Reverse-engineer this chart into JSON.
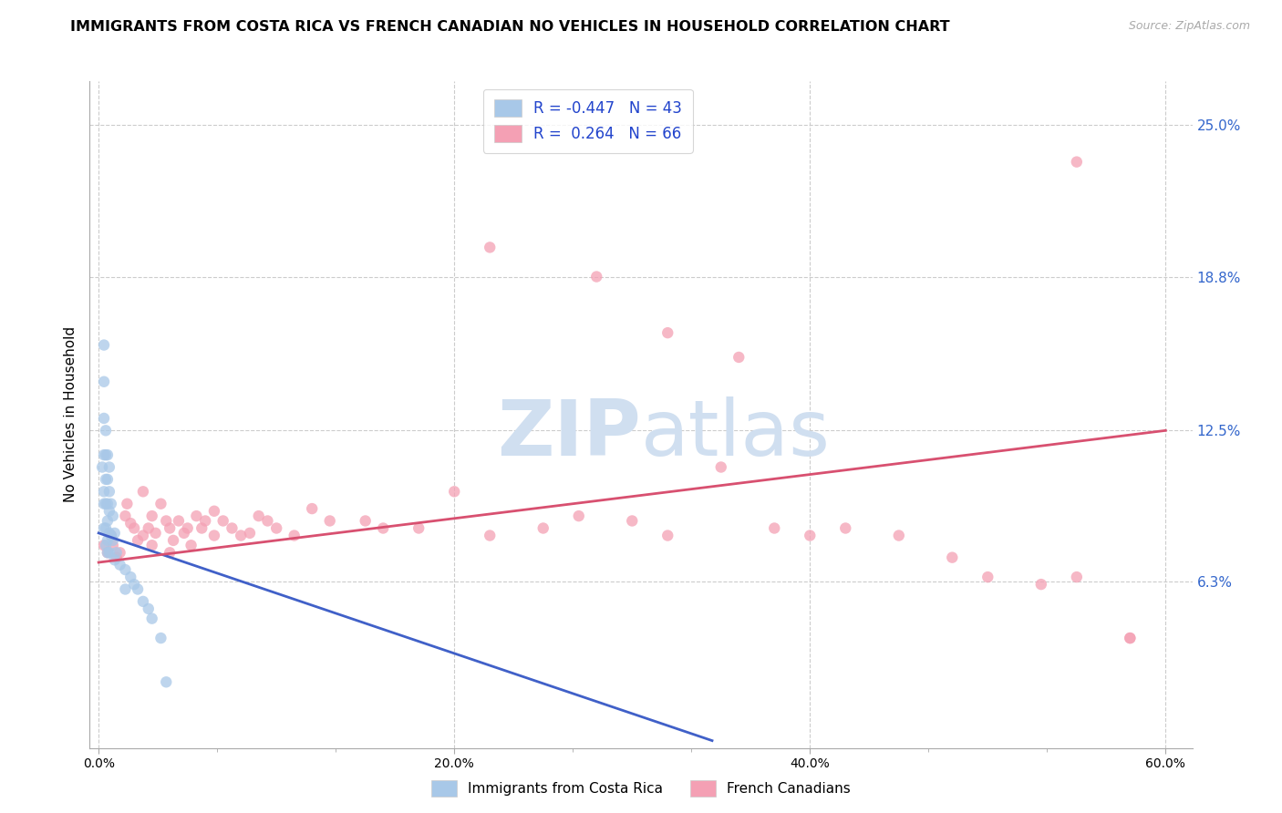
{
  "title": "IMMIGRANTS FROM COSTA RICA VS FRENCH CANADIAN NO VEHICLES IN HOUSEHOLD CORRELATION CHART",
  "source": "Source: ZipAtlas.com",
  "ylabel": "No Vehicles in Household",
  "xlabel_ticks": [
    "0.0%",
    "",
    "",
    "20.0%",
    "",
    "",
    "40.0%",
    "",
    "",
    "60.0%"
  ],
  "ylabel_ticks": [
    "6.3%",
    "12.5%",
    "18.8%",
    "25.0%"
  ],
  "ylabel_tick_vals": [
    0.063,
    0.125,
    0.188,
    0.25
  ],
  "xmin": -0.005,
  "xmax": 0.615,
  "ymin": -0.005,
  "ymax": 0.268,
  "blue_R": "-0.447",
  "blue_N": "43",
  "pink_R": "0.264",
  "pink_N": "66",
  "legend_label_blue": "Immigrants from Costa Rica",
  "legend_label_pink": "French Canadians",
  "blue_scatter_color": "#a8c8e8",
  "pink_scatter_color": "#f4a0b4",
  "blue_line_color": "#4060c8",
  "pink_line_color": "#d85070",
  "marker_size": 80,
  "marker_alpha": 0.75,
  "watermark_color": "#d0dff0",
  "blue_line_x0": 0.0,
  "blue_line_y0": 0.083,
  "blue_line_x1": 0.345,
  "blue_line_y1": -0.002,
  "pink_line_x0": 0.0,
  "pink_line_y0": 0.071,
  "pink_line_x1": 0.6,
  "pink_line_y1": 0.125,
  "background_color": "#ffffff",
  "grid_color": "#cccccc",
  "title_fontsize": 11.5,
  "axis_label_fontsize": 11,
  "tick_fontsize": 10,
  "blue_x": [
    0.002,
    0.003,
    0.003,
    0.003,
    0.003,
    0.003,
    0.003,
    0.003,
    0.004,
    0.004,
    0.004,
    0.004,
    0.004,
    0.004,
    0.005,
    0.005,
    0.005,
    0.005,
    0.005,
    0.005,
    0.006,
    0.006,
    0.006,
    0.006,
    0.006,
    0.007,
    0.007,
    0.008,
    0.008,
    0.009,
    0.009,
    0.01,
    0.012,
    0.015,
    0.015,
    0.018,
    0.02,
    0.022,
    0.025,
    0.028,
    0.03,
    0.035,
    0.038
  ],
  "blue_y": [
    0.11,
    0.16,
    0.145,
    0.13,
    0.115,
    0.1,
    0.095,
    0.085,
    0.125,
    0.115,
    0.105,
    0.095,
    0.085,
    0.078,
    0.115,
    0.105,
    0.095,
    0.088,
    0.08,
    0.075,
    0.11,
    0.1,
    0.092,
    0.083,
    0.075,
    0.095,
    0.082,
    0.09,
    0.08,
    0.083,
    0.072,
    0.075,
    0.07,
    0.068,
    0.06,
    0.065,
    0.062,
    0.06,
    0.055,
    0.052,
    0.048,
    0.04,
    0.022
  ],
  "pink_x": [
    0.003,
    0.005,
    0.007,
    0.008,
    0.01,
    0.012,
    0.015,
    0.016,
    0.018,
    0.02,
    0.022,
    0.025,
    0.025,
    0.028,
    0.03,
    0.03,
    0.032,
    0.035,
    0.038,
    0.04,
    0.04,
    0.042,
    0.045,
    0.048,
    0.05,
    0.052,
    0.055,
    0.058,
    0.06,
    0.065,
    0.065,
    0.07,
    0.075,
    0.08,
    0.085,
    0.09,
    0.095,
    0.1,
    0.11,
    0.12,
    0.13,
    0.15,
    0.16,
    0.18,
    0.2,
    0.22,
    0.25,
    0.27,
    0.3,
    0.32,
    0.35,
    0.38,
    0.4,
    0.42,
    0.45,
    0.48,
    0.5,
    0.53,
    0.55,
    0.58,
    0.22,
    0.28,
    0.32,
    0.36,
    0.55,
    0.58
  ],
  "pink_y": [
    0.078,
    0.075,
    0.082,
    0.078,
    0.073,
    0.075,
    0.09,
    0.095,
    0.087,
    0.085,
    0.08,
    0.1,
    0.082,
    0.085,
    0.09,
    0.078,
    0.083,
    0.095,
    0.088,
    0.085,
    0.075,
    0.08,
    0.088,
    0.083,
    0.085,
    0.078,
    0.09,
    0.085,
    0.088,
    0.092,
    0.082,
    0.088,
    0.085,
    0.082,
    0.083,
    0.09,
    0.088,
    0.085,
    0.082,
    0.093,
    0.088,
    0.088,
    0.085,
    0.085,
    0.1,
    0.082,
    0.085,
    0.09,
    0.088,
    0.082,
    0.11,
    0.085,
    0.082,
    0.085,
    0.082,
    0.073,
    0.065,
    0.062,
    0.065,
    0.04,
    0.2,
    0.188,
    0.165,
    0.155,
    0.235,
    0.04
  ]
}
